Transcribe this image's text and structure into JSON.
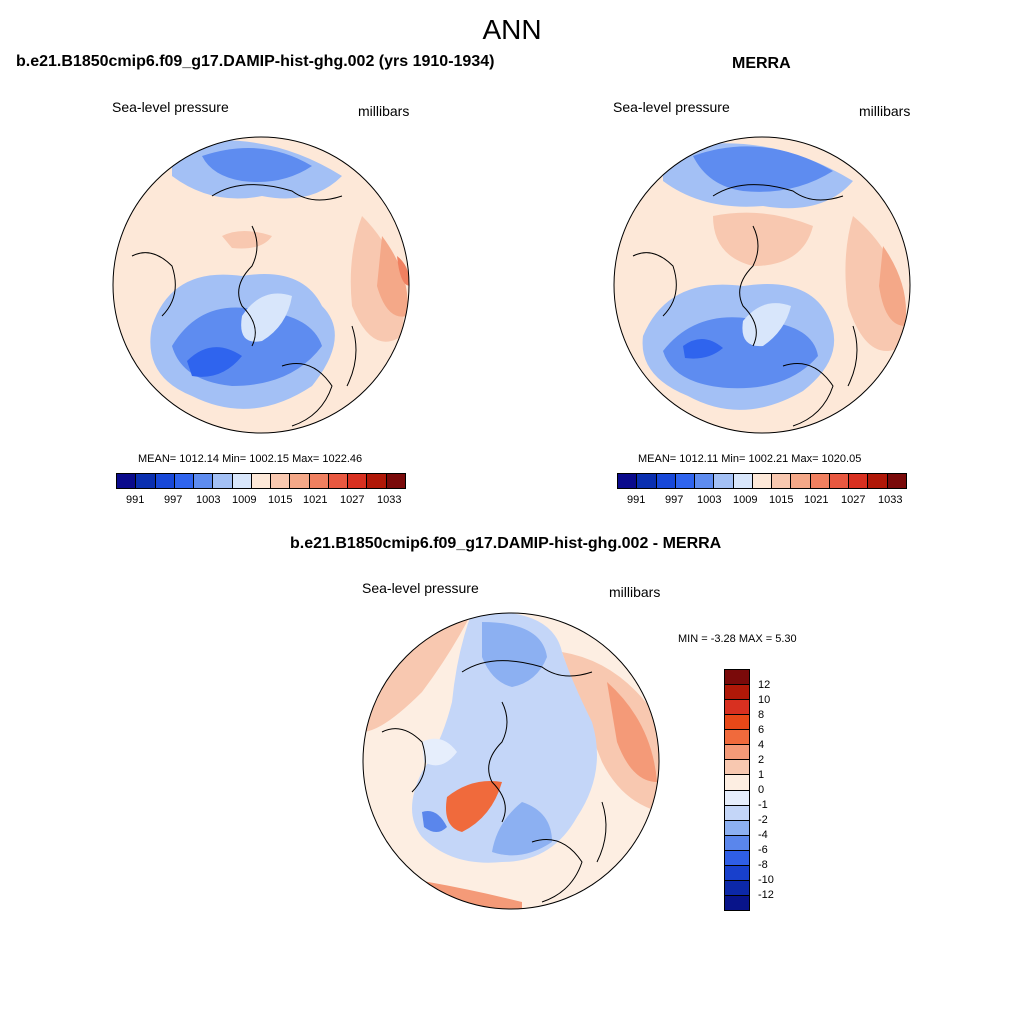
{
  "main_title": "ANN",
  "left_panel": {
    "title": "b.e21.B1850cmip6.f09_g17.DAMIP-hist-ghg.002 (yrs 1910-1934)",
    "variable": "Sea-level pressure",
    "units": "millibars",
    "stats": "MEAN= 1012.14  Min= 1002.15  Max= 1022.46"
  },
  "right_panel": {
    "title": "MERRA",
    "variable": "Sea-level pressure",
    "units": "millibars",
    "stats": "MEAN= 1012.11  Min= 1002.21  Max= 1020.05"
  },
  "diff_panel": {
    "title": "b.e21.B1850cmip6.f09_g17.DAMIP-hist-ghg.002 - MERRA",
    "variable": "Sea-level pressure",
    "units": "millibars",
    "stats": "MIN =  -3.28 MAX =   5.30"
  },
  "colorbar_main": {
    "tick_labels": [
      "991",
      "997",
      "1003",
      "1009",
      "1015",
      "1021",
      "1027",
      "1033"
    ],
    "colors": [
      "#0a0a8c",
      "#0a2fb0",
      "#1848d8",
      "#2f64ee",
      "#5e8cf0",
      "#a3c0f5",
      "#d8e6fb",
      "#fde8d8",
      "#f8c8b0",
      "#f4a888",
      "#f08060",
      "#e85840",
      "#d83020",
      "#b01808",
      "#7a0a0a"
    ]
  },
  "colorbar_diff": {
    "tick_labels": [
      "12",
      "10",
      "8",
      "6",
      "4",
      "2",
      "1",
      "0",
      "-1",
      "-2",
      "-4",
      "-6",
      "-8",
      "-10",
      "-12"
    ],
    "colors": [
      "#7a0a0a",
      "#b01808",
      "#d83020",
      "#e84818",
      "#f06a3c",
      "#f49a78",
      "#f8c8b0",
      "#fdeee2",
      "#e6eefc",
      "#c4d6f8",
      "#8cb0f2",
      "#5a86ec",
      "#2f5ee6",
      "#1840cc",
      "#0c28a8",
      "#08148a"
    ]
  }
}
